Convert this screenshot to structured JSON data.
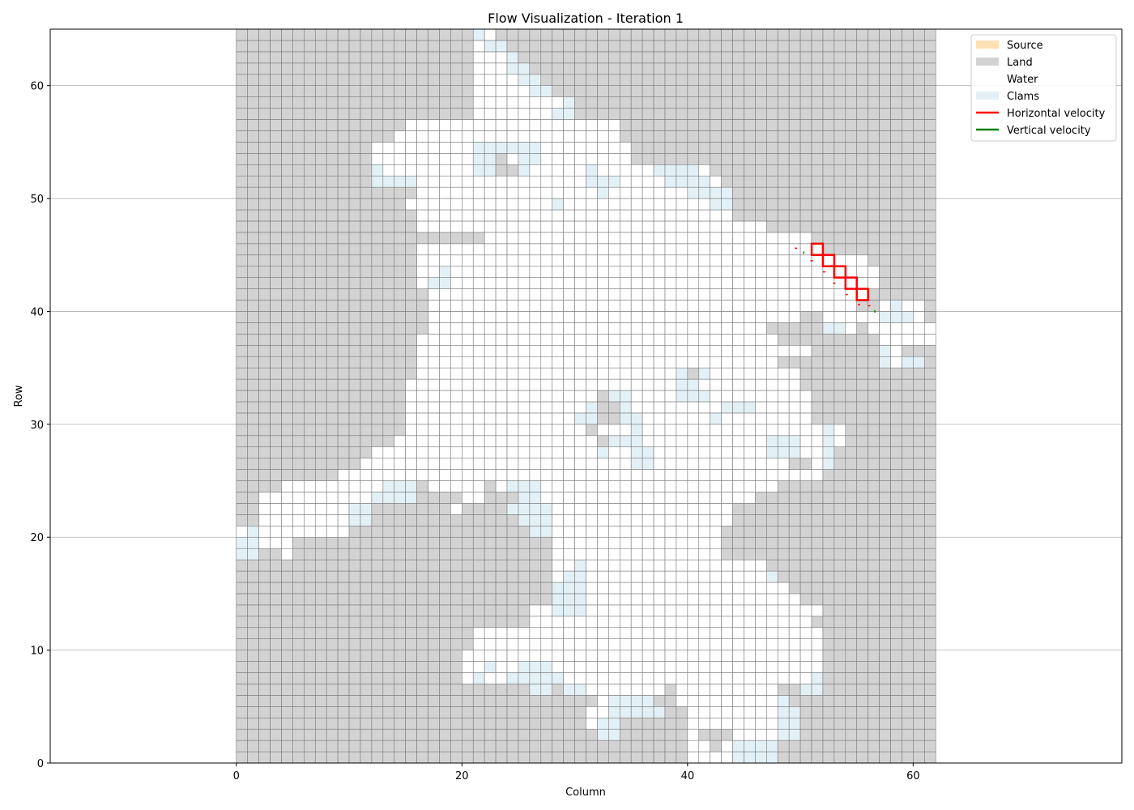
{
  "chart_data": {
    "type": "heatmap",
    "title": "Flow Visualization - Iteration 1",
    "xlabel": "Column",
    "ylabel": "Row",
    "xlim": [
      -16.5,
      78.5
    ],
    "ylim": [
      0,
      65
    ],
    "xticks": [
      0,
      20,
      40,
      60
    ],
    "yticks": [
      0,
      10,
      20,
      30,
      40,
      50,
      60
    ],
    "grid": "horizontal",
    "grid_columns": 62,
    "grid_rows": 65,
    "legend_position": "top-right",
    "legend": [
      {
        "label": "Source",
        "kind": "patch",
        "color": "#fde0b2"
      },
      {
        "label": "Land",
        "kind": "patch",
        "color": "#d3d3d3"
      },
      {
        "label": "Water",
        "kind": "patch",
        "color": "#ffffff"
      },
      {
        "label": "Clams",
        "kind": "patch",
        "color": "#e3f1f7"
      },
      {
        "label": "Horizontal velocity",
        "kind": "line",
        "color": "#ff0000"
      },
      {
        "label": "Vertical velocity",
        "kind": "line",
        "color": "#008000"
      }
    ],
    "colors": {
      "land": "#d3d3d3",
      "water": "#ffffff",
      "clams": "#e3f1f7",
      "source": "#fde0b2",
      "cell_edge": "#7a7a7a",
      "highlight": "#ff0000",
      "horizontal_velocity": "#ff0000",
      "vertical_velocity": "#008000"
    },
    "water_spans": [
      [
        0,
        40,
        47
      ],
      [
        1,
        40,
        42
      ],
      [
        1,
        43,
        48
      ],
      [
        2,
        40,
        41
      ],
      [
        2,
        44,
        48
      ],
      [
        3,
        31,
        33
      ],
      [
        3,
        40,
        49
      ],
      [
        4,
        31,
        37
      ],
      [
        4,
        40,
        49
      ],
      [
        5,
        32,
        37
      ],
      [
        5,
        39,
        49
      ],
      [
        6,
        30,
        38
      ],
      [
        6,
        39,
        48
      ],
      [
        7,
        20,
        51
      ],
      [
        8,
        20,
        52
      ],
      [
        9,
        20,
        52
      ],
      [
        10,
        21,
        52
      ],
      [
        11,
        21,
        52
      ],
      [
        12,
        26,
        51
      ],
      [
        13,
        26,
        52
      ],
      [
        14,
        28,
        50
      ],
      [
        15,
        28,
        49
      ],
      [
        16,
        28,
        48
      ],
      [
        17,
        28,
        46
      ],
      [
        17,
        44,
        47
      ],
      [
        18,
        0,
        1
      ],
      [
        18,
        4,
        5
      ],
      [
        18,
        28,
        43
      ],
      [
        19,
        0,
        5
      ],
      [
        19,
        28,
        43
      ],
      [
        20,
        0,
        10
      ],
      [
        20,
        28,
        43
      ],
      [
        21,
        2,
        11
      ],
      [
        21,
        28,
        44
      ],
      [
        22,
        2,
        11
      ],
      [
        22,
        19,
        20
      ],
      [
        22,
        28,
        44
      ],
      [
        23,
        2,
        16
      ],
      [
        23,
        20,
        22
      ],
      [
        23,
        27,
        46
      ],
      [
        24,
        4,
        16
      ],
      [
        24,
        17,
        22
      ],
      [
        24,
        23,
        48
      ],
      [
        25,
        9,
        52
      ],
      [
        26,
        11,
        49
      ],
      [
        26,
        51,
        52
      ],
      [
        27,
        12,
        53
      ],
      [
        28,
        14,
        54
      ],
      [
        29,
        15,
        54
      ],
      [
        30,
        15,
        51
      ],
      [
        31,
        15,
        51
      ],
      [
        32,
        15,
        51
      ],
      [
        33,
        15,
        50
      ],
      [
        34,
        16,
        50
      ],
      [
        35,
        16,
        48
      ],
      [
        35,
        57,
        60
      ],
      [
        36,
        16,
        51
      ],
      [
        36,
        57,
        59
      ],
      [
        37,
        16,
        48
      ],
      [
        37,
        57,
        62
      ],
      [
        38,
        17,
        47
      ],
      [
        38,
        52,
        55
      ],
      [
        38,
        56,
        62
      ],
      [
        39,
        17,
        51
      ],
      [
        39,
        52,
        61
      ],
      [
        40,
        17,
        55
      ],
      [
        40,
        57,
        61
      ],
      [
        41,
        17,
        56
      ],
      [
        42,
        16,
        57
      ],
      [
        43,
        16,
        57
      ],
      [
        44,
        16,
        56
      ],
      [
        45,
        16,
        52
      ],
      [
        46,
        22,
        51
      ],
      [
        47,
        16,
        47
      ],
      [
        48,
        16,
        44
      ],
      [
        49,
        15,
        44
      ],
      [
        50,
        16,
        43
      ],
      [
        51,
        12,
        43
      ],
      [
        52,
        12,
        42
      ],
      [
        53,
        12,
        35
      ],
      [
        54,
        12,
        35
      ],
      [
        55,
        14,
        34
      ],
      [
        56,
        15,
        34
      ],
      [
        57,
        21,
        30
      ],
      [
        58,
        21,
        29
      ],
      [
        59,
        21,
        28
      ],
      [
        60,
        21,
        27
      ],
      [
        61,
        21,
        26
      ],
      [
        62,
        21,
        25
      ],
      [
        63,
        21,
        24
      ],
      [
        64,
        21,
        23
      ]
    ],
    "clams_spans": [
      [
        0,
        44,
        48
      ],
      [
        1,
        44,
        48
      ],
      [
        2,
        32,
        34
      ],
      [
        2,
        48,
        50
      ],
      [
        3,
        32,
        34
      ],
      [
        3,
        48,
        50
      ],
      [
        4,
        33,
        38
      ],
      [
        4,
        48,
        50
      ],
      [
        5,
        33,
        37
      ],
      [
        5,
        48,
        49
      ],
      [
        6,
        26,
        28
      ],
      [
        6,
        29,
        31
      ],
      [
        6,
        50,
        52
      ],
      [
        7,
        21,
        22
      ],
      [
        7,
        24,
        29
      ],
      [
        7,
        51,
        52
      ],
      [
        8,
        22,
        23
      ],
      [
        8,
        25,
        28
      ],
      [
        13,
        28,
        31
      ],
      [
        14,
        28,
        31
      ],
      [
        15,
        28,
        31
      ],
      [
        16,
        29,
        31
      ],
      [
        16,
        47,
        48
      ],
      [
        17,
        30,
        31
      ],
      [
        18,
        0,
        2
      ],
      [
        19,
        0,
        2
      ],
      [
        20,
        1,
        2
      ],
      [
        20,
        26,
        28
      ],
      [
        21,
        10,
        12
      ],
      [
        21,
        25,
        28
      ],
      [
        22,
        10,
        12
      ],
      [
        22,
        24,
        28
      ],
      [
        23,
        12,
        16
      ],
      [
        23,
        25,
        27
      ],
      [
        24,
        13,
        16
      ],
      [
        24,
        24,
        27
      ],
      [
        26,
        35,
        37
      ],
      [
        26,
        52,
        53
      ],
      [
        27,
        32,
        33
      ],
      [
        27,
        35,
        37
      ],
      [
        27,
        47,
        50
      ],
      [
        27,
        52,
        53
      ],
      [
        28,
        33,
        36
      ],
      [
        28,
        47,
        50
      ],
      [
        28,
        52,
        53
      ],
      [
        29,
        35,
        36
      ],
      [
        29,
        52,
        53
      ],
      [
        30,
        30,
        32
      ],
      [
        30,
        34,
        36
      ],
      [
        30,
        42,
        43
      ],
      [
        31,
        31,
        35
      ],
      [
        31,
        43,
        46
      ],
      [
        32,
        32,
        35
      ],
      [
        32,
        39,
        42
      ],
      [
        33,
        39,
        41
      ],
      [
        33,
        42,
        42
      ],
      [
        34,
        39,
        42
      ],
      [
        35,
        57,
        58
      ],
      [
        35,
        59,
        61
      ],
      [
        36,
        57,
        58
      ],
      [
        38,
        52,
        54
      ],
      [
        39,
        57,
        60
      ],
      [
        40,
        58,
        59
      ],
      [
        42,
        17,
        19
      ],
      [
        43,
        18,
        19
      ],
      [
        49,
        28,
        29
      ],
      [
        49,
        42,
        44
      ],
      [
        50,
        32,
        33
      ],
      [
        50,
        40,
        44
      ],
      [
        51,
        31,
        34
      ],
      [
        51,
        38,
        42
      ],
      [
        51,
        12,
        16
      ],
      [
        52,
        12,
        13
      ],
      [
        52,
        21,
        23
      ],
      [
        52,
        25,
        26
      ],
      [
        52,
        31,
        32
      ],
      [
        52,
        37,
        41
      ],
      [
        53,
        21,
        23
      ],
      [
        53,
        25,
        27
      ],
      [
        54,
        21,
        27
      ],
      [
        57,
        28,
        30
      ],
      [
        58,
        29,
        30
      ],
      [
        59,
        26,
        28
      ],
      [
        60,
        25,
        27
      ],
      [
        61,
        24,
        26
      ],
      [
        62,
        24,
        25
      ],
      [
        63,
        22,
        24
      ],
      [
        64,
        21,
        22
      ]
    ],
    "land_islands": [
      [
        29,
        31,
        32
      ],
      [
        28,
        32,
        33
      ],
      [
        30,
        32,
        34
      ],
      [
        31,
        32,
        34
      ],
      [
        32,
        32,
        33
      ],
      [
        52,
        23,
        25
      ],
      [
        53,
        23,
        24
      ],
      [
        34,
        40,
        41
      ],
      [
        35,
        52,
        53
      ],
      [
        38,
        51,
        52
      ],
      [
        39,
        50,
        51
      ]
    ],
    "source_cells": [],
    "highlighted_cells": [
      [
        51,
        45
      ],
      [
        52,
        44
      ],
      [
        53,
        43
      ],
      [
        54,
        42
      ],
      [
        55,
        41
      ]
    ],
    "horizontal_velocity_marks": [
      [
        49.6,
        45.6
      ],
      [
        51.0,
        44.5
      ],
      [
        52.1,
        43.5
      ],
      [
        53.0,
        42.5
      ],
      [
        54.1,
        41.5
      ],
      [
        55.2,
        40.6
      ],
      [
        56.1,
        40.5
      ]
    ],
    "vertical_velocity_marks": [
      [
        50.3,
        45.2
      ],
      [
        56.6,
        40.0
      ]
    ]
  }
}
